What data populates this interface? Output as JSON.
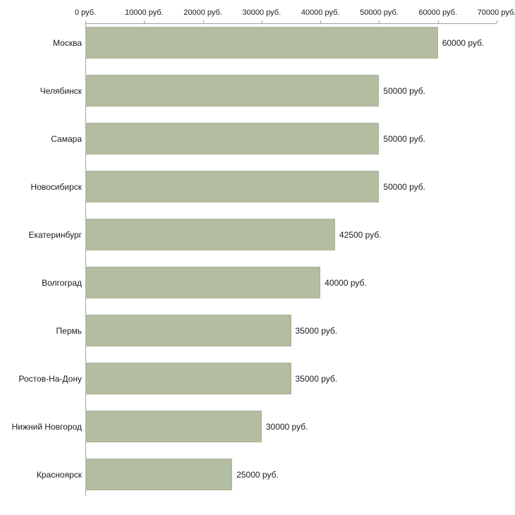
{
  "chart_data": {
    "type": "bar",
    "orientation": "horizontal",
    "title": "",
    "xlabel": "",
    "ylabel": "",
    "unit": "руб.",
    "categories": [
      "Москва",
      "Челябинск",
      "Самара",
      "Новосибирск",
      "Екатеринбург",
      "Волгоград",
      "Пермь",
      "Ростов-На-Дону",
      "Нижний Новгород",
      "Красноярск"
    ],
    "values": [
      60000,
      50000,
      50000,
      50000,
      42500,
      40000,
      35000,
      35000,
      30000,
      25000
    ],
    "value_labels": [
      "60000 руб.",
      "50000 руб.",
      "50000 руб.",
      "50000 руб.",
      "42500 руб.",
      "40000 руб.",
      "35000 руб.",
      "35000 руб.",
      "30000 руб.",
      "25000 руб."
    ],
    "xlim": [
      0,
      70000
    ],
    "x_ticks": [
      0,
      10000,
      20000,
      30000,
      40000,
      50000,
      60000,
      70000
    ],
    "x_tick_labels": [
      "0 руб.",
      "10000 руб.",
      "20000 руб.",
      "30000 руб.",
      "40000 руб.",
      "50000 руб.",
      "60000 руб.",
      "70000 руб."
    ],
    "legend": null,
    "grid": false,
    "bar_color": "#b3bda2",
    "axis_color": "#a0a0a0",
    "text_color": "#1a1a1a"
  }
}
